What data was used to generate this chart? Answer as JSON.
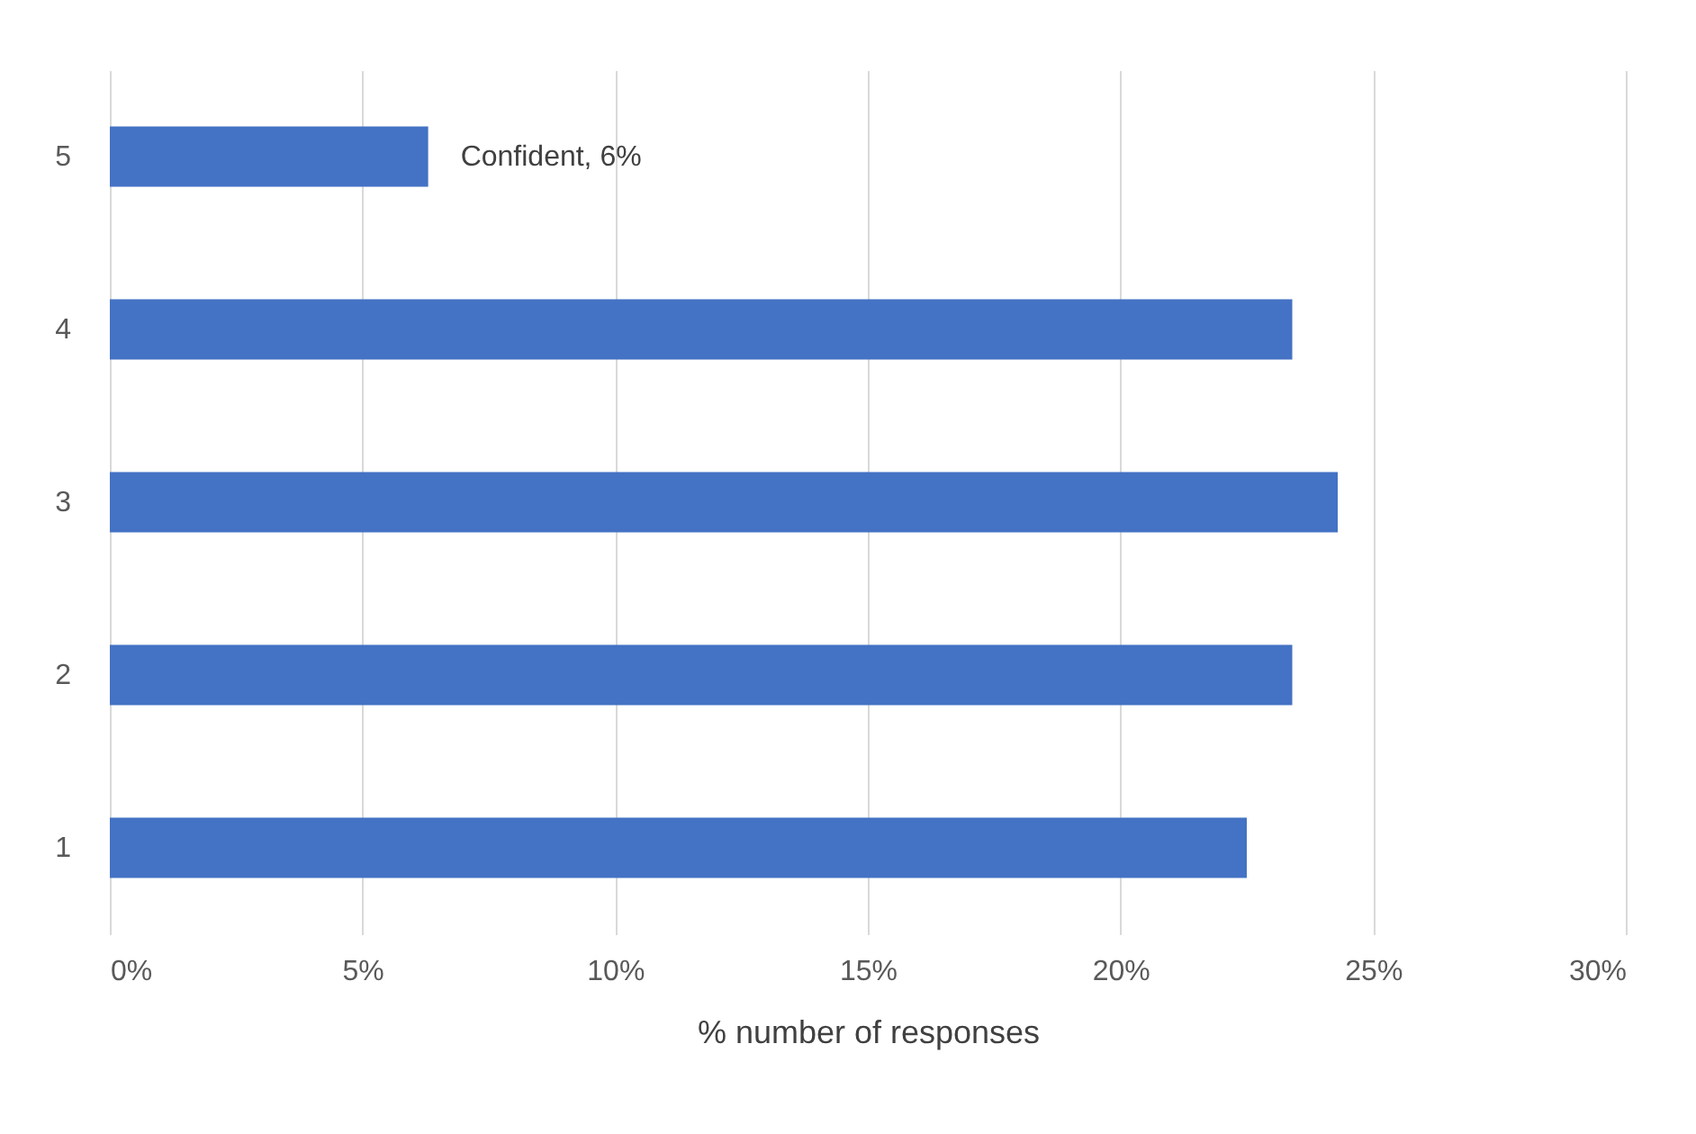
{
  "chart_data": {
    "type": "bar",
    "orientation": "horizontal",
    "xlabel": "% number of responses",
    "categories": [
      "5",
      "4",
      "3",
      "2",
      "1"
    ],
    "values": [
      6.3,
      23.4,
      24.3,
      23.4,
      22.5
    ],
    "color": "#4472c4",
    "xlim": [
      0,
      30
    ],
    "xticks": [
      {
        "value": 0,
        "label": "0%"
      },
      {
        "value": 5,
        "label": "5%"
      },
      {
        "value": 10,
        "label": "10%"
      },
      {
        "value": 15,
        "label": "15%"
      },
      {
        "value": 20,
        "label": "20%"
      },
      {
        "value": 25,
        "label": "25%"
      },
      {
        "value": 30,
        "label": "30%"
      }
    ],
    "grid": "x",
    "annotations": [
      {
        "text": "Confident, 6%",
        "x": 6.3,
        "y": "5"
      }
    ]
  }
}
